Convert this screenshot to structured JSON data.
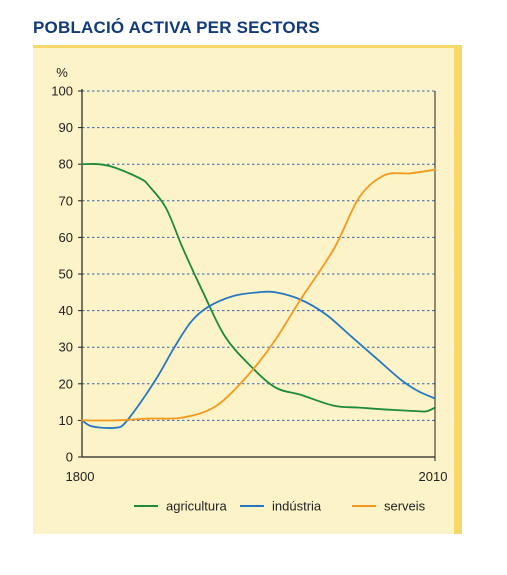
{
  "chart_data": {
    "type": "line",
    "title": "POBLACIÓ ACTIVA PER SECTORS",
    "ylabel": "%",
    "xlabel": "",
    "ylim": [
      0,
      100
    ],
    "xlim": [
      1800,
      2010
    ],
    "x_tick_labels": [
      "1800",
      "2010"
    ],
    "y_ticks": [
      0,
      10,
      20,
      30,
      40,
      50,
      60,
      70,
      80,
      90,
      100
    ],
    "y_tick_labels": [
      "0",
      "10",
      "20",
      "30",
      "40",
      "50",
      "60",
      "70",
      "80",
      "90",
      "100"
    ],
    "grid": true,
    "legend_position": "bottom",
    "series": [
      {
        "name": "agricultura",
        "color": "#1e8a3c",
        "x": [
          1800,
          1810,
          1820,
          1835,
          1840,
          1850,
          1860,
          1872,
          1885,
          1900,
          1915,
          1930,
          1950,
          1965,
          1980,
          2000,
          2005,
          2010
        ],
        "y": [
          80,
          80,
          79,
          76,
          74,
          68,
          57,
          45,
          33,
          25,
          19,
          17,
          14,
          13.5,
          13,
          12.5,
          12.5,
          13.5
        ]
      },
      {
        "name": "indústria",
        "color": "#2878c0",
        "x": [
          1800,
          1805,
          1812,
          1820,
          1825,
          1835,
          1845,
          1855,
          1865,
          1875,
          1890,
          1905,
          1915,
          1930,
          1945,
          1960,
          1975,
          1990,
          2000,
          2010
        ],
        "y": [
          10,
          8.5,
          8,
          8,
          9,
          15,
          22,
          30,
          37,
          41,
          44,
          45,
          45,
          43,
          39,
          33,
          27,
          21,
          18,
          16
        ]
      },
      {
        "name": "serveis",
        "color": "#f39a1e",
        "x": [
          1800,
          1820,
          1840,
          1860,
          1880,
          1900,
          1915,
          1930,
          1950,
          1965,
          1980,
          1995,
          2010
        ],
        "y": [
          10,
          10,
          10.5,
          10.8,
          14,
          23,
          32,
          43,
          57,
          71,
          77,
          77.5,
          78.5
        ]
      }
    ]
  }
}
